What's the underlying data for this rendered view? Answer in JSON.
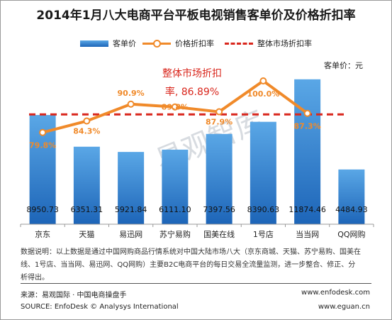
{
  "title": "2014年1月八大电商平台平板电视销售客单价及价格折扣率",
  "legend": {
    "bar": "客单价",
    "line": "价格折扣率",
    "dash": "整体市场折扣率"
  },
  "unit": "客单价：元",
  "avg_label": {
    "line1": "整体市场折扣",
    "line2": "率, 86.89%"
  },
  "note": "数据说明：以上数据是通过中国网购商品行情系统对中国大陆市场八大（京东商城、天猫、苏宁易购、国美在线、1号店、当当网、易迅网、QQ网购）主要B2C电商平台的每日交易全流量监测，进一步整合、修正、分析得出。",
  "source": {
    "left1": "来源：易观国际 · 中国电商操盘手",
    "left2": "SOURCE: EnfoDesk © Analysys International",
    "right1": "www.enfodesk.com",
    "right2": "www.eguan.cn"
  },
  "watermark": "易观智库",
  "colors": {
    "bar_top": "#5aa7e6",
    "bar_bottom": "#1d65b8",
    "line": "#f08a2a",
    "dash": "#d9261c",
    "line_label": "#f08a2a",
    "watermark": "#d7dbe0"
  },
  "chart_data": {
    "type": "bar",
    "categories": [
      "京东",
      "天猫",
      "易迅网",
      "苏宁易购",
      "国美在线",
      "1号店",
      "当当网",
      "QQ网购"
    ],
    "series": [
      {
        "name": "客单价",
        "type": "bar",
        "values": [
          8950.73,
          6351.31,
          5921.84,
          6111.1,
          7397.56,
          8390.63,
          11874.46,
          4484.93
        ]
      },
      {
        "name": "价格折扣率",
        "type": "line",
        "values": [
          79.8,
          84.3,
          90.9,
          89.8,
          87.9,
          100.0,
          87.3,
          null
        ],
        "labels": [
          "79.8%",
          "84.3%",
          "90.9%",
          "89.8%",
          "87.9%",
          "100.0%",
          "87.3%",
          ""
        ]
      }
    ],
    "reference_line": {
      "name": "整体市场折扣率",
      "value": 86.89
    },
    "bar_labels": [
      "8950.73",
      "6351.31",
      "5921.84",
      "6111.10",
      "7397.56",
      "8390.63",
      "11874.46",
      "4484.93"
    ],
    "bar_ylim": [
      0,
      12500
    ],
    "line_ylim": [
      55,
      105
    ]
  }
}
